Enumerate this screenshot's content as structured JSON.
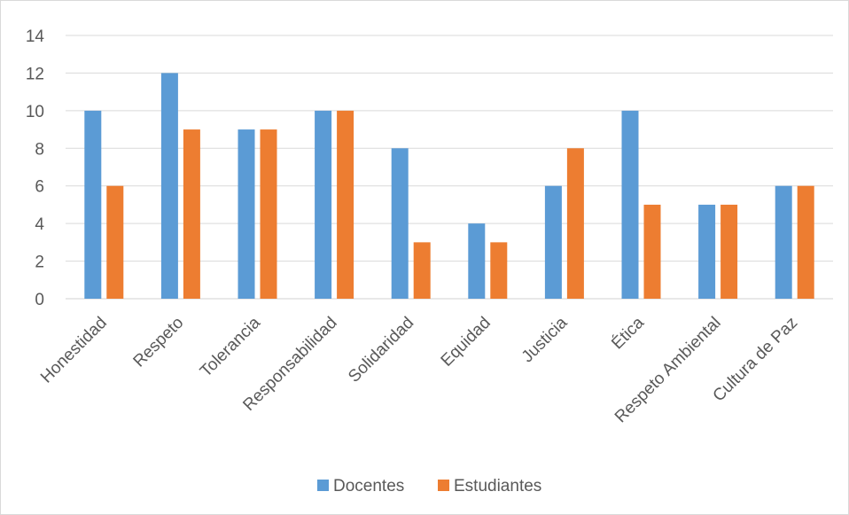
{
  "chart_data": {
    "type": "bar",
    "title": "",
    "xlabel": "",
    "ylabel": "",
    "ylim": [
      0,
      14
    ],
    "yticks": [
      0,
      2,
      4,
      6,
      8,
      10,
      12,
      14
    ],
    "grid": true,
    "legend_position": "bottom",
    "categories": [
      "Honestidad",
      "Respeto",
      "Tolerancia",
      "Responsabilidad",
      "Solidaridad",
      "Equidad",
      "Justicia",
      "Ética",
      "Respeto Ambiental",
      "Cultura de Paz"
    ],
    "series": [
      {
        "name": "Docentes",
        "color": "#5B9BD5",
        "values": [
          10,
          12,
          9,
          10,
          8,
          4,
          6,
          10,
          5,
          6
        ]
      },
      {
        "name": "Estudiantes",
        "color": "#ED7D31",
        "values": [
          6,
          9,
          9,
          10,
          3,
          3,
          8,
          5,
          5,
          6
        ]
      }
    ]
  }
}
